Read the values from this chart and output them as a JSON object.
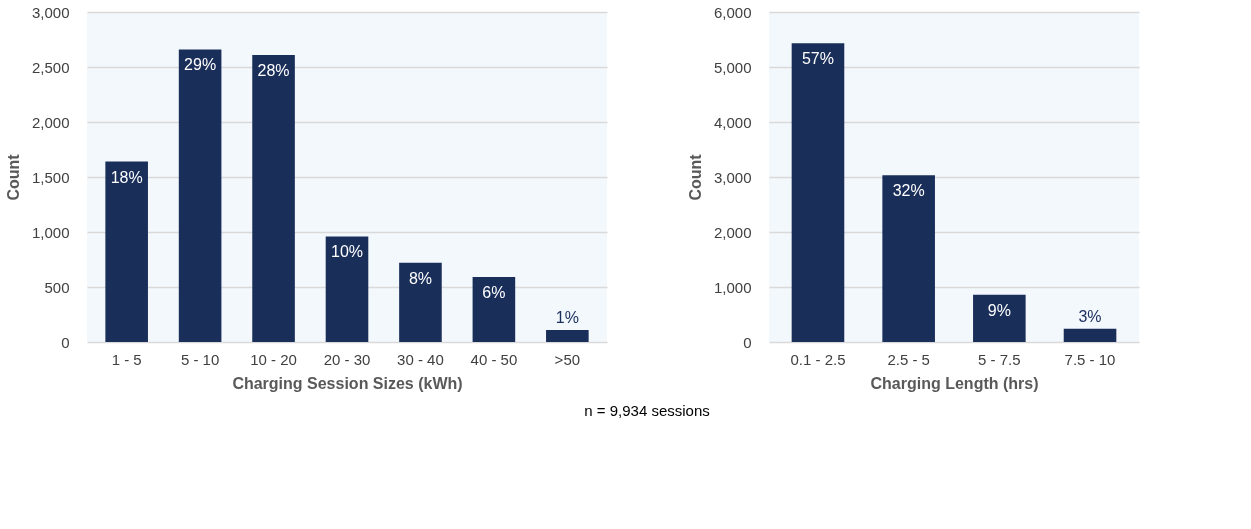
{
  "chart_data": [
    {
      "type": "bar",
      "xlabel": "Charging Session Sizes (kWh)",
      "ylabel": "Count",
      "categories": [
        "1 - 5",
        "5 - 10",
        "10 - 20",
        "20 - 30",
        "30 - 40",
        "40 - 50",
        ">50"
      ],
      "values": [
        1640,
        2660,
        2610,
        960,
        720,
        590,
        110
      ],
      "color": "#1a2e5a",
      "ylim": [
        0,
        3000
      ],
      "yticks": [
        0,
        500,
        {
          "value": 1000,
          "label": "1,000"
        },
        {
          "value": 1500,
          "label": "1,500"
        },
        {
          "value": 2000,
          "label": "2,000"
        },
        {
          "value": 2500,
          "label": "2,500"
        },
        {
          "value": 3000,
          "label": "3,000"
        }
      ],
      "grid": "y",
      "annotations": [
        {
          "text": "18%",
          "x": "1 - 5",
          "y": 1640
        },
        {
          "text": "29%",
          "x": "5 - 10",
          "y": 2660
        },
        {
          "text": "28%",
          "x": "10 - 20",
          "y": 2610
        },
        {
          "text": "10%",
          "x": "20 - 30",
          "y": 960
        },
        {
          "text": "8%",
          "x": "30 - 40",
          "y": 720
        },
        {
          "text": "6%",
          "x": "40 - 50",
          "y": 590
        },
        {
          "text": "1%",
          "x": ">50",
          "y": 110
        },
        "n = 9,934 sessions"
      ]
    },
    {
      "type": "bar",
      "xlabel": "Charging Length (hrs)",
      "ylabel": "Count",
      "categories": [
        "0.1 - 2.5",
        "2.5 - 5",
        "5 - 7.5",
        "7.5 - 10"
      ],
      "values": [
        5430,
        3030,
        860,
        240
      ],
      "color": "#1a2e5a",
      "ylim": [
        0,
        6000
      ],
      "yticks": [
        0,
        {
          "value": 1000,
          "label": "1,000"
        },
        {
          "value": 2000,
          "label": "2,000"
        },
        {
          "value": 3000,
          "label": "3,000"
        },
        {
          "value": 4000,
          "label": "4,000"
        },
        {
          "value": 5000,
          "label": "5,000"
        },
        {
          "value": 6000,
          "label": "6,000"
        }
      ],
      "grid": "y",
      "annotations": [
        {
          "text": "57%",
          "x": "0.1 - 2.5",
          "y": 5430
        },
        {
          "text": "32%",
          "x": "2.5 - 5",
          "y": 3030
        },
        {
          "text": "9%",
          "x": "5 - 7.5",
          "y": 860
        },
        {
          "text": "3%",
          "x": "7.5 - 10",
          "y": 240
        }
      ]
    }
  ]
}
